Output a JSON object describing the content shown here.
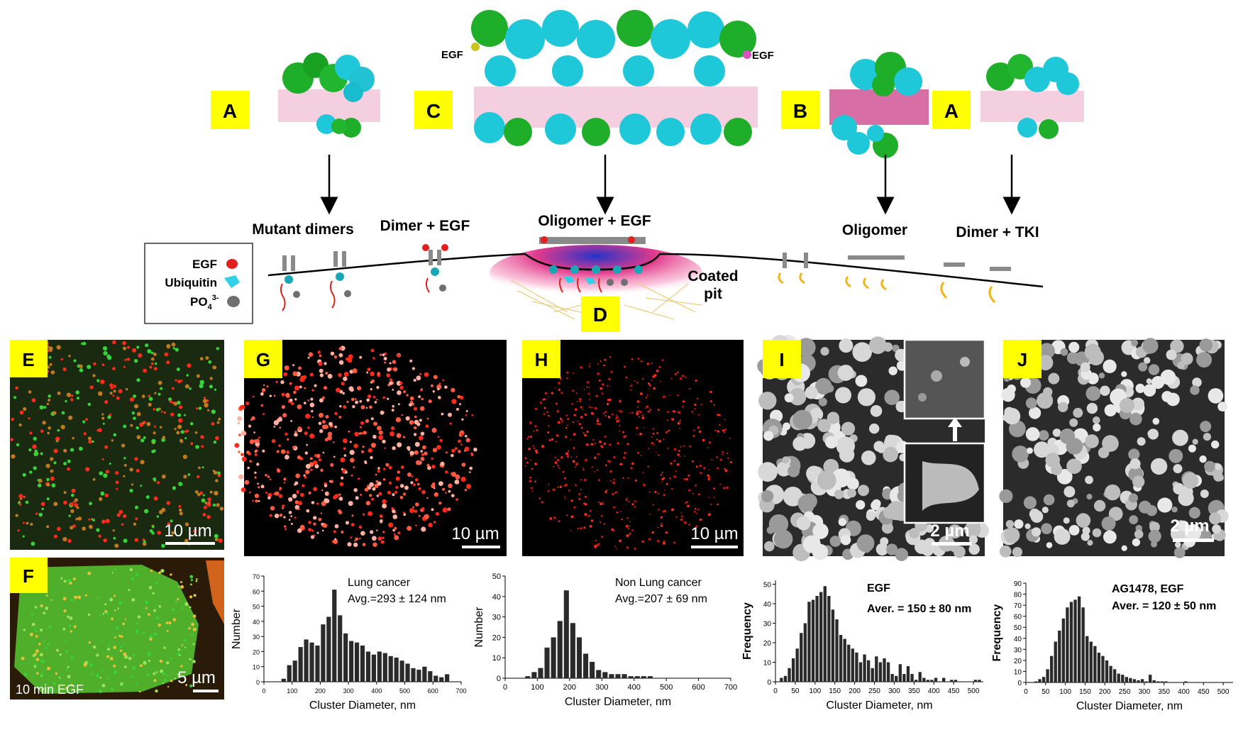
{
  "colors": {
    "tag_bg": "#ffff00",
    "protein_cyan": "#1ec8d8",
    "protein_green": "#1fae2a",
    "membrane_pink": "#f2c6d8",
    "membrane_magenta": "#d96aa8",
    "egf_red": "#e0201c",
    "ubiquitin_cyan": "#2fd0e8",
    "phosphate_gray": "#6f6f6f",
    "fluor_red": "#ff2a1a",
    "fluor_green": "#38d23a",
    "bar_dark": "#2a2a2a"
  },
  "panel_tags": {
    "a1": "A",
    "c": "C",
    "b": "B",
    "a2": "A",
    "d": "D",
    "e": "E",
    "f": "F",
    "g": "G",
    "h": "H",
    "i": "I",
    "j": "J"
  },
  "structure_labels": {
    "egf_left": "EGF",
    "egf_right": "EGF"
  },
  "schematic": {
    "mutant_dimers": "Mutant dimers",
    "dimer_egf": "Dimer + EGF",
    "oligomer_egf": "Oligomer + EGF",
    "oligomer": "Oligomer",
    "dimer_tki": "Dimer + TKI",
    "coated_pit_1": "Coated",
    "coated_pit_2": "pit"
  },
  "legend": {
    "egf": "EGF",
    "ubiquitin": "Ubiquitin",
    "po4": "PO",
    "po4_sub": "4",
    "po4_sup": "3-"
  },
  "scalebars": {
    "e": "10 µm",
    "f": "5 µm",
    "g": "10 µm",
    "h": "10 µm",
    "i": "2 µm",
    "j": "2 µm"
  },
  "image_labels": {
    "f_caption": "10 min EGF"
  },
  "chart_data": [
    {
      "type": "bar",
      "panel": "G",
      "annotation_1": "Lung cancer",
      "annotation_2": "Avg.=293 ± 124 nm",
      "xlabel": "Cluster Diameter, nm",
      "ylabel": "Number",
      "xlim": [
        0,
        700
      ],
      "ylim": [
        0,
        70
      ],
      "xticks": [
        0,
        100,
        200,
        300,
        400,
        500,
        600,
        700
      ],
      "yticks": [
        0,
        10,
        20,
        30,
        40,
        50,
        60,
        70
      ],
      "bin_width": 20,
      "x": [
        70,
        90,
        110,
        130,
        150,
        170,
        190,
        210,
        230,
        250,
        270,
        290,
        310,
        330,
        350,
        370,
        390,
        410,
        430,
        450,
        470,
        490,
        510,
        530,
        550,
        570,
        590,
        610,
        630,
        650
      ],
      "values": [
        2,
        11,
        14,
        23,
        28,
        26,
        24,
        38,
        43,
        61,
        44,
        32,
        27,
        26,
        24,
        20,
        18,
        20,
        19,
        17,
        16,
        14,
        12,
        9,
        8,
        10,
        7,
        4,
        3,
        5
      ]
    },
    {
      "type": "bar",
      "panel": "H",
      "annotation_1": "Non Lung cancer",
      "annotation_2": "Avg.=207 ± 69 nm",
      "xlabel": "Cluster Diameter, nm",
      "ylabel": "Number",
      "xlim": [
        0,
        700
      ],
      "ylim": [
        0,
        50
      ],
      "xticks": [
        0,
        100,
        200,
        300,
        400,
        500,
        600,
        700
      ],
      "yticks": [
        0,
        10,
        20,
        30,
        40,
        50
      ],
      "bin_width": 20,
      "x": [
        70,
        90,
        110,
        130,
        150,
        170,
        190,
        210,
        230,
        250,
        270,
        290,
        310,
        330,
        350,
        370,
        390,
        410,
        430,
        450
      ],
      "values": [
        1,
        3,
        5,
        15,
        20,
        28,
        43,
        27,
        20,
        12,
        8,
        4,
        3,
        2,
        2,
        2,
        1,
        1,
        1,
        1
      ]
    },
    {
      "type": "bar",
      "panel": "I",
      "annotation_1": "EGF",
      "annotation_2": "Aver. = 150 ± 80 nm",
      "xlabel": "Cluster Diameter, nm",
      "ylabel": "Frequency",
      "xlim": [
        0,
        525
      ],
      "ylim": [
        0,
        52
      ],
      "xticks": [
        0,
        50,
        100,
        150,
        200,
        250,
        300,
        350,
        400,
        450,
        500
      ],
      "yticks": [
        0,
        10,
        20,
        30,
        40,
        50
      ],
      "bin_width": 10,
      "x": [
        15,
        25,
        35,
        45,
        55,
        65,
        75,
        85,
        95,
        105,
        115,
        125,
        135,
        145,
        155,
        165,
        175,
        185,
        195,
        205,
        215,
        225,
        235,
        245,
        255,
        265,
        275,
        285,
        295,
        305,
        315,
        325,
        335,
        345,
        355,
        365,
        375,
        385,
        395,
        405,
        415,
        425,
        435,
        445,
        455,
        465,
        475,
        485,
        495,
        505,
        515
      ],
      "values": [
        2,
        3,
        7,
        12,
        17,
        25,
        30,
        41,
        42,
        44,
        46,
        49,
        44,
        37,
        32,
        24,
        22,
        19,
        17,
        15,
        10,
        14,
        11,
        7,
        13,
        10,
        12,
        10,
        4,
        3,
        9,
        4,
        8,
        4,
        1,
        5,
        2,
        1,
        1,
        2,
        0,
        2,
        0,
        1,
        1,
        0,
        0,
        0,
        0,
        1,
        1
      ]
    },
    {
      "type": "bar",
      "panel": "J",
      "annotation_1": "AG1478, EGF",
      "annotation_2": "Aver. = 120 ± 50 nm",
      "xlabel": "Cluster Diameter, nm",
      "ylabel": "Frequency",
      "xlim": [
        0,
        525
      ],
      "ylim": [
        0,
        90
      ],
      "xticks": [
        0,
        50,
        100,
        150,
        200,
        250,
        300,
        350,
        400,
        450,
        500
      ],
      "yticks": [
        0,
        10,
        20,
        30,
        40,
        50,
        60,
        70,
        80,
        90
      ],
      "bin_width": 10,
      "x": [
        25,
        35,
        45,
        55,
        65,
        75,
        85,
        95,
        105,
        115,
        125,
        135,
        145,
        155,
        165,
        175,
        185,
        195,
        205,
        215,
        225,
        235,
        245,
        255,
        265,
        275,
        285,
        295,
        305,
        315,
        325,
        335,
        345,
        355,
        365,
        375,
        385,
        395,
        405,
        415
      ],
      "values": [
        1,
        3,
        5,
        12,
        24,
        37,
        47,
        58,
        68,
        73,
        75,
        78,
        68,
        42,
        37,
        33,
        27,
        24,
        20,
        15,
        12,
        8,
        7,
        5,
        4,
        3,
        2,
        3,
        1,
        7,
        2,
        1,
        1,
        1,
        0,
        0,
        0,
        0,
        1,
        0
      ]
    }
  ]
}
